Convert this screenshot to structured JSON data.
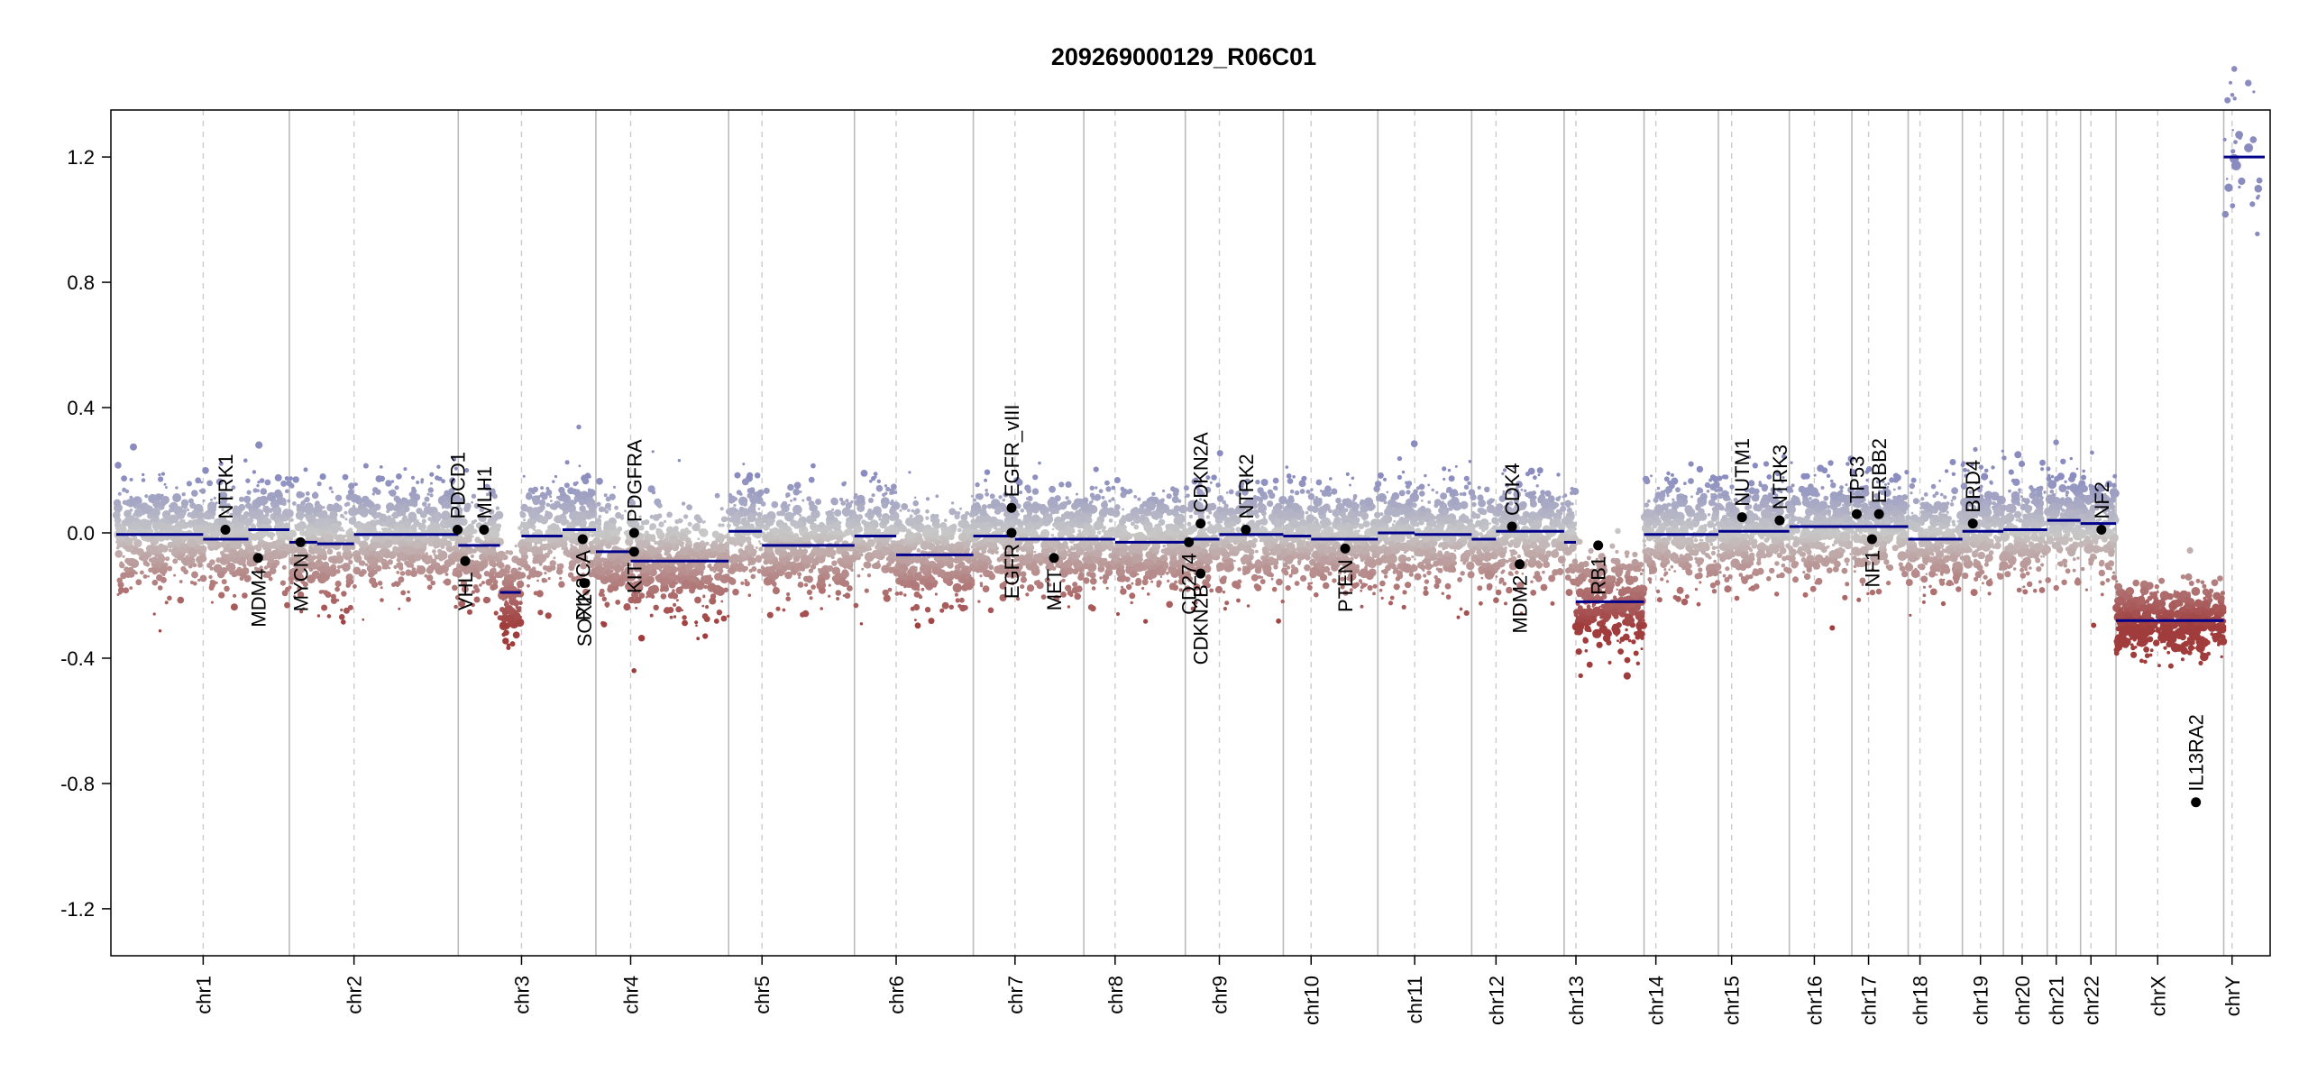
{
  "chart_data": {
    "type": "scatter",
    "title": "209269000129_R06C01",
    "xlabel": "",
    "ylabel": "",
    "ylim": [
      -1.35,
      1.35
    ],
    "yticks": [
      -1.2,
      -0.8,
      -0.4,
      0.0,
      0.4,
      0.8,
      1.2
    ],
    "ytick_labels": [
      "-1.2",
      "-0.8",
      "-0.4",
      "0.0",
      "0.4",
      "0.8",
      "1.2"
    ],
    "colors": {
      "gain": "#8a8cc0",
      "neutral": "#c8c8c8",
      "loss": "#a03c3c",
      "segment": "#00008b",
      "gene_point": "#000000",
      "chr_boundary": "#bbbbbb",
      "centromere": "#cccccc"
    },
    "chromosomes": [
      {
        "name": "chr1",
        "size": 249,
        "cen": 125
      },
      {
        "name": "chr2",
        "size": 243,
        "cen": 93
      },
      {
        "name": "chr3",
        "size": 198,
        "cen": 91
      },
      {
        "name": "chr4",
        "size": 191,
        "cen": 50
      },
      {
        "name": "chr5",
        "size": 181,
        "cen": 48
      },
      {
        "name": "chr6",
        "size": 171,
        "cen": 60
      },
      {
        "name": "chr7",
        "size": 159,
        "cen": 60
      },
      {
        "name": "chr8",
        "size": 146,
        "cen": 45
      },
      {
        "name": "chr9",
        "size": 141,
        "cen": 49
      },
      {
        "name": "chr10",
        "size": 136,
        "cen": 40
      },
      {
        "name": "chr11",
        "size": 135,
        "cen": 53
      },
      {
        "name": "chr12",
        "size": 133,
        "cen": 35
      },
      {
        "name": "chr13",
        "size": 115,
        "cen": 17
      },
      {
        "name": "chr14",
        "size": 107,
        "cen": 17
      },
      {
        "name": "chr15",
        "size": 102,
        "cen": 19
      },
      {
        "name": "chr16",
        "size": 90,
        "cen": 36
      },
      {
        "name": "chr17",
        "size": 81,
        "cen": 24
      },
      {
        "name": "chr18",
        "size": 78,
        "cen": 17
      },
      {
        "name": "chr19",
        "size": 59,
        "cen": 26
      },
      {
        "name": "chr20",
        "size": 63,
        "cen": 27
      },
      {
        "name": "chr21",
        "size": 48,
        "cen": 13
      },
      {
        "name": "chr22",
        "size": 51,
        "cen": 15
      },
      {
        "name": "chrX",
        "size": 155,
        "cen": 60
      },
      {
        "name": "chrY",
        "size": 59,
        "cen": 12
      }
    ],
    "segments": [
      {
        "chr": "chr1",
        "start": 0,
        "end": 125,
        "value": -0.005
      },
      {
        "chr": "chr1",
        "start": 125,
        "end": 190,
        "value": -0.02
      },
      {
        "chr": "chr1",
        "start": 190,
        "end": 249,
        "value": 0.01
      },
      {
        "chr": "chr2",
        "start": 0,
        "end": 40,
        "value": -0.03
      },
      {
        "chr": "chr2",
        "start": 40,
        "end": 93,
        "value": -0.035
      },
      {
        "chr": "chr2",
        "start": 93,
        "end": 243,
        "value": -0.005
      },
      {
        "chr": "chr3",
        "start": 0,
        "end": 60,
        "value": -0.04
      },
      {
        "chr": "chr3",
        "start": 60,
        "end": 90,
        "value": -0.19
      },
      {
        "chr": "chr3",
        "start": 91,
        "end": 150,
        "value": -0.01
      },
      {
        "chr": "chr3",
        "start": 150,
        "end": 198,
        "value": 0.01
      },
      {
        "chr": "chr4",
        "start": 0,
        "end": 50,
        "value": -0.06
      },
      {
        "chr": "chr4",
        "start": 50,
        "end": 191,
        "value": -0.09
      },
      {
        "chr": "chr5",
        "start": 0,
        "end": 48,
        "value": 0.005
      },
      {
        "chr": "chr5",
        "start": 48,
        "end": 181,
        "value": -0.04
      },
      {
        "chr": "chr6",
        "start": 0,
        "end": 60,
        "value": -0.01
      },
      {
        "chr": "chr6",
        "start": 60,
        "end": 171,
        "value": -0.07
      },
      {
        "chr": "chr7",
        "start": 0,
        "end": 60,
        "value": -0.01
      },
      {
        "chr": "chr7",
        "start": 60,
        "end": 159,
        "value": -0.02
      },
      {
        "chr": "chr8",
        "start": 0,
        "end": 45,
        "value": -0.02
      },
      {
        "chr": "chr8",
        "start": 45,
        "end": 146,
        "value": -0.03
      },
      {
        "chr": "chr9",
        "start": 0,
        "end": 49,
        "value": -0.02
      },
      {
        "chr": "chr9",
        "start": 49,
        "end": 141,
        "value": -0.005
      },
      {
        "chr": "chr10",
        "start": 0,
        "end": 40,
        "value": -0.01
      },
      {
        "chr": "chr10",
        "start": 40,
        "end": 136,
        "value": -0.02
      },
      {
        "chr": "chr11",
        "start": 0,
        "end": 53,
        "value": 0.0
      },
      {
        "chr": "chr11",
        "start": 53,
        "end": 135,
        "value": -0.005
      },
      {
        "chr": "chr12",
        "start": 0,
        "end": 35,
        "value": -0.02
      },
      {
        "chr": "chr12",
        "start": 35,
        "end": 133,
        "value": 0.005
      },
      {
        "chr": "chr13",
        "start": 0,
        "end": 17,
        "value": -0.03
      },
      {
        "chr": "chr13",
        "start": 17,
        "end": 115,
        "value": -0.22
      },
      {
        "chr": "chr14",
        "start": 0,
        "end": 107,
        "value": -0.005
      },
      {
        "chr": "chr15",
        "start": 0,
        "end": 102,
        "value": 0.005
      },
      {
        "chr": "chr16",
        "start": 0,
        "end": 90,
        "value": 0.02
      },
      {
        "chr": "chr17",
        "start": 0,
        "end": 81,
        "value": 0.02
      },
      {
        "chr": "chr18",
        "start": 0,
        "end": 78,
        "value": -0.02
      },
      {
        "chr": "chr19",
        "start": 0,
        "end": 59,
        "value": 0.005
      },
      {
        "chr": "chr20",
        "start": 0,
        "end": 63,
        "value": 0.01
      },
      {
        "chr": "chr21",
        "start": 0,
        "end": 48,
        "value": 0.04
      },
      {
        "chr": "chr22",
        "start": 0,
        "end": 51,
        "value": 0.03
      },
      {
        "chr": "chrX",
        "start": 0,
        "end": 155,
        "value": -0.28
      },
      {
        "chr": "chrY",
        "start": 0,
        "end": 59,
        "value": 1.2
      }
    ],
    "genes": [
      {
        "name": "NTRK1",
        "chr": "chr1",
        "pos": 157,
        "value": 0.01,
        "label_side": "up"
      },
      {
        "name": "MDM4",
        "chr": "chr1",
        "pos": 204,
        "value": -0.08,
        "label_side": "down"
      },
      {
        "name": "MYCN",
        "chr": "chr2",
        "pos": 16,
        "value": -0.03,
        "label_side": "down"
      },
      {
        "name": "PDCD1",
        "chr": "chr2",
        "pos": 242,
        "value": 0.01,
        "label_side": "up"
      },
      {
        "name": "VHL",
        "chr": "chr3",
        "pos": 10,
        "value": -0.09,
        "label_side": "down"
      },
      {
        "name": "MLH1",
        "chr": "chr3",
        "pos": 37,
        "value": 0.01,
        "label_side": "up"
      },
      {
        "name": "SOX2",
        "chr": "chr3",
        "pos": 181,
        "value": -0.16,
        "label_side": "down"
      },
      {
        "name": "PIK3CA",
        "chr": "chr3",
        "pos": 179,
        "value": -0.02,
        "label_side": "down"
      },
      {
        "name": "KIT",
        "chr": "chr4",
        "pos": 55,
        "value": -0.06,
        "label_side": "down"
      },
      {
        "name": "PDGFRA",
        "chr": "chr4",
        "pos": 55,
        "value": 0.0,
        "label_side": "up"
      },
      {
        "name": "EGFR",
        "chr": "chr7",
        "pos": 55,
        "value": 0.0,
        "label_side": "down"
      },
      {
        "name": "EGFR_vIII",
        "chr": "chr7",
        "pos": 55,
        "value": 0.08,
        "label_side": "up"
      },
      {
        "name": "MET",
        "chr": "chr7",
        "pos": 116,
        "value": -0.08,
        "label_side": "down"
      },
      {
        "name": "CD274",
        "chr": "chr9",
        "pos": 5,
        "value": -0.03,
        "label_side": "down"
      },
      {
        "name": "CDKN2B",
        "chr": "chr9",
        "pos": 22,
        "value": -0.13,
        "label_side": "down"
      },
      {
        "name": "CDKN2A",
        "chr": "chr9",
        "pos": 22,
        "value": 0.03,
        "label_side": "up"
      },
      {
        "name": "NTRK2",
        "chr": "chr9",
        "pos": 87,
        "value": 0.01,
        "label_side": "up"
      },
      {
        "name": "PTEN",
        "chr": "chr10",
        "pos": 89,
        "value": -0.05,
        "label_side": "down"
      },
      {
        "name": "CDK4",
        "chr": "chr12",
        "pos": 58,
        "value": 0.02,
        "label_side": "up"
      },
      {
        "name": "MDM2",
        "chr": "chr12",
        "pos": 69,
        "value": -0.1,
        "label_side": "down"
      },
      {
        "name": "RB1",
        "chr": "chr13",
        "pos": 49,
        "value": -0.04,
        "label_side": "down"
      },
      {
        "name": "NUTM1",
        "chr": "chr15",
        "pos": 34,
        "value": 0.05,
        "label_side": "up"
      },
      {
        "name": "NTRK3",
        "chr": "chr15",
        "pos": 88,
        "value": 0.04,
        "label_side": "up"
      },
      {
        "name": "TP53",
        "chr": "chr17",
        "pos": 7,
        "value": 0.06,
        "label_side": "up"
      },
      {
        "name": "NF1",
        "chr": "chr17",
        "pos": 29,
        "value": -0.02,
        "label_side": "down"
      },
      {
        "name": "ERBB2",
        "chr": "chr17",
        "pos": 39,
        "value": 0.06,
        "label_side": "up"
      },
      {
        "name": "BRD4",
        "chr": "chr19",
        "pos": 15,
        "value": 0.03,
        "label_side": "up"
      },
      {
        "name": "NF2",
        "chr": "chr22",
        "pos": 30,
        "value": 0.01,
        "label_side": "up"
      },
      {
        "name": "IL13RA2",
        "chrX_note": "",
        "chr": "chrX",
        "pos": 115,
        "value": -0.86,
        "label_side": "up"
      }
    ]
  }
}
